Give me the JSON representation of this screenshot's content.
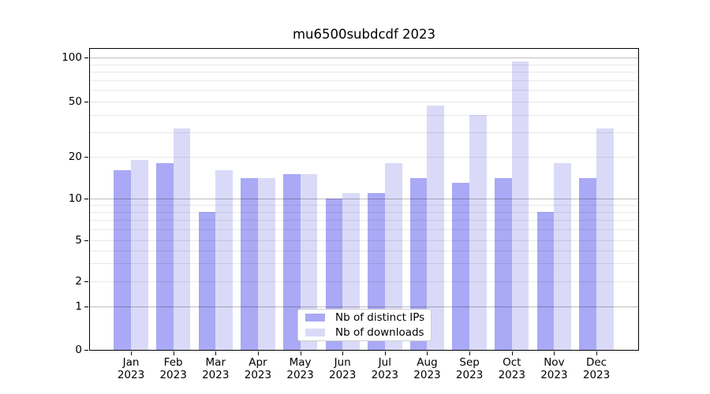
{
  "figure": {
    "background": "#ffffff",
    "title": "mu6500subdcdf 2023"
  },
  "chart_data": {
    "type": "bar",
    "title": "mu6500subdcdf 2023",
    "year_label": "2023",
    "categories": [
      "Jan",
      "Feb",
      "Mar",
      "Apr",
      "May",
      "Jun",
      "Jul",
      "Aug",
      "Sep",
      "Oct",
      "Nov",
      "Dec"
    ],
    "series": [
      {
        "name": "Nb of distinct IPs",
        "color": "#a9a9f5",
        "values": [
          16,
          18,
          8,
          14,
          15,
          10,
          11,
          14,
          13,
          14,
          8,
          14
        ]
      },
      {
        "name": "Nb of downloads",
        "color": "#dadaf8",
        "values": [
          19,
          32,
          16,
          14,
          15,
          11,
          18,
          47,
          40,
          94,
          18,
          32
        ]
      }
    ],
    "y_axis": {
      "scale": "symlog",
      "ylim": [
        0,
        100
      ],
      "tick_values": [
        0,
        1,
        2,
        5,
        10,
        20,
        50,
        100
      ],
      "tick_labels": [
        "0",
        "1",
        "2",
        "5",
        "10",
        "20",
        "50",
        "100"
      ]
    },
    "x_axis": {
      "label_format": "month over year"
    },
    "grid": "on",
    "legend_position": "lower-center"
  }
}
